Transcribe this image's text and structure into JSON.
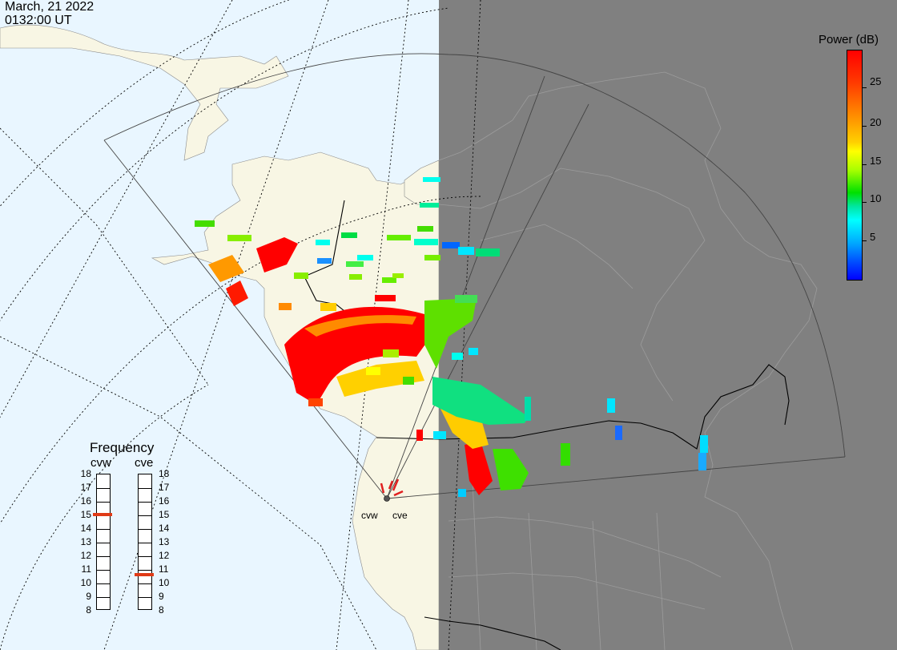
{
  "header": {
    "date": "March, 21 2022",
    "time": "0132:00 UT"
  },
  "colorbar": {
    "title": "Power (dB)",
    "ticks": [
      "25",
      "20",
      "15",
      "10",
      "5"
    ],
    "min_db": 0,
    "max_db": 30,
    "colors": {
      "high": "#ff0000",
      "mid": "#ffff00",
      "low": "#0000ff"
    }
  },
  "frequency_panel": {
    "title": "Frequency",
    "left_label": "cvw",
    "right_label": "cve",
    "scale_labels": [
      "18",
      "17",
      "16",
      "15",
      "14",
      "13",
      "12",
      "11",
      "10",
      "9",
      "8"
    ],
    "cvw_frequency_mhz": 15,
    "cve_frequency_mhz": 10.6,
    "marker_color": "#e03a16"
  },
  "sites": {
    "west": "cvw",
    "east": "cve"
  },
  "map": {
    "land_color": "#f8f6e4",
    "ocean_color": "#e9f6ff",
    "night_color": "#808080"
  }
}
